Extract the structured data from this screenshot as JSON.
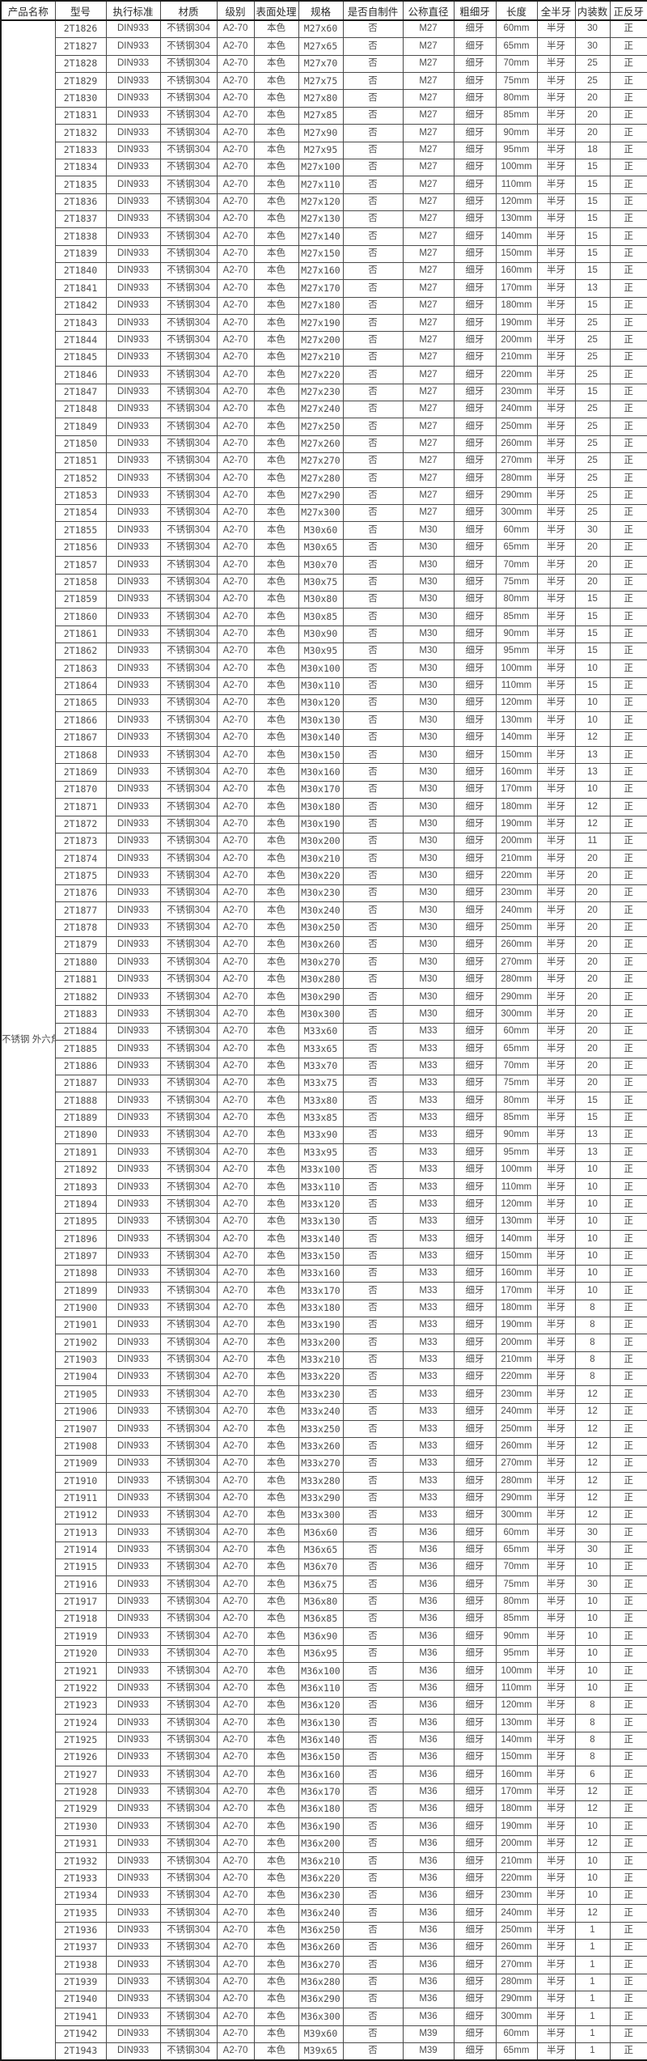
{
  "product": {
    "name": "不锈钢 外六角螺丝"
  },
  "table": {
    "columns": [
      "产品名称",
      "型号",
      "执行标准",
      "材质",
      "级别",
      "表面处理",
      "规格",
      "是否自制件",
      "公称直径",
      "粗细牙",
      "长度",
      "全半牙",
      "内装数",
      "正反牙"
    ],
    "constants": {
      "standard": "DIN933",
      "material": "不锈钢304",
      "grade": "A2-70",
      "surface": "本色",
      "self_made": "否",
      "thread_pitch": "细牙",
      "thread_coverage": "半牙",
      "thread_direction": "正"
    },
    "rows": [
      [
        "2T1826",
        "M27x60",
        "M27",
        "60mm",
        "30"
      ],
      [
        "2T1827",
        "M27x65",
        "M27",
        "65mm",
        "30"
      ],
      [
        "2T1828",
        "M27x70",
        "M27",
        "70mm",
        "25"
      ],
      [
        "2T1829",
        "M27x75",
        "M27",
        "75mm",
        "25"
      ],
      [
        "2T1830",
        "M27x80",
        "M27",
        "80mm",
        "20"
      ],
      [
        "2T1831",
        "M27x85",
        "M27",
        "85mm",
        "20"
      ],
      [
        "2T1832",
        "M27x90",
        "M27",
        "90mm",
        "20"
      ],
      [
        "2T1833",
        "M27x95",
        "M27",
        "95mm",
        "18"
      ],
      [
        "2T1834",
        "M27x100",
        "M27",
        "100mm",
        "15"
      ],
      [
        "2T1835",
        "M27x110",
        "M27",
        "110mm",
        "15"
      ],
      [
        "2T1836",
        "M27x120",
        "M27",
        "120mm",
        "15"
      ],
      [
        "2T1837",
        "M27x130",
        "M27",
        "130mm",
        "15"
      ],
      [
        "2T1838",
        "M27x140",
        "M27",
        "140mm",
        "15"
      ],
      [
        "2T1839",
        "M27x150",
        "M27",
        "150mm",
        "15"
      ],
      [
        "2T1840",
        "M27x160",
        "M27",
        "160mm",
        "15"
      ],
      [
        "2T1841",
        "M27x170",
        "M27",
        "170mm",
        "13"
      ],
      [
        "2T1842",
        "M27x180",
        "M27",
        "180mm",
        "15"
      ],
      [
        "2T1843",
        "M27x190",
        "M27",
        "190mm",
        "25"
      ],
      [
        "2T1844",
        "M27x200",
        "M27",
        "200mm",
        "25"
      ],
      [
        "2T1845",
        "M27x210",
        "M27",
        "210mm",
        "25"
      ],
      [
        "2T1846",
        "M27x220",
        "M27",
        "220mm",
        "25"
      ],
      [
        "2T1847",
        "M27x230",
        "M27",
        "230mm",
        "15"
      ],
      [
        "2T1848",
        "M27x240",
        "M27",
        "240mm",
        "25"
      ],
      [
        "2T1849",
        "M27x250",
        "M27",
        "250mm",
        "25"
      ],
      [
        "2T1850",
        "M27x260",
        "M27",
        "260mm",
        "25"
      ],
      [
        "2T1851",
        "M27x270",
        "M27",
        "270mm",
        "25"
      ],
      [
        "2T1852",
        "M27x280",
        "M27",
        "280mm",
        "25"
      ],
      [
        "2T1853",
        "M27x290",
        "M27",
        "290mm",
        "25"
      ],
      [
        "2T1854",
        "M27x300",
        "M27",
        "300mm",
        "25"
      ],
      [
        "2T1855",
        "M30x60",
        "M30",
        "60mm",
        "30"
      ],
      [
        "2T1856",
        "M30x65",
        "M30",
        "65mm",
        "20"
      ],
      [
        "2T1857",
        "M30x70",
        "M30",
        "70mm",
        "20"
      ],
      [
        "2T1858",
        "M30x75",
        "M30",
        "75mm",
        "20"
      ],
      [
        "2T1859",
        "M30x80",
        "M30",
        "80mm",
        "15"
      ],
      [
        "2T1860",
        "M30x85",
        "M30",
        "85mm",
        "15"
      ],
      [
        "2T1861",
        "M30x90",
        "M30",
        "90mm",
        "15"
      ],
      [
        "2T1862",
        "M30x95",
        "M30",
        "95mm",
        "15"
      ],
      [
        "2T1863",
        "M30x100",
        "M30",
        "100mm",
        "10"
      ],
      [
        "2T1864",
        "M30x110",
        "M30",
        "110mm",
        "15"
      ],
      [
        "2T1865",
        "M30x120",
        "M30",
        "120mm",
        "10"
      ],
      [
        "2T1866",
        "M30x130",
        "M30",
        "130mm",
        "10"
      ],
      [
        "2T1867",
        "M30x140",
        "M30",
        "140mm",
        "12"
      ],
      [
        "2T1868",
        "M30x150",
        "M30",
        "150mm",
        "13"
      ],
      [
        "2T1869",
        "M30x160",
        "M30",
        "160mm",
        "13"
      ],
      [
        "2T1870",
        "M30x170",
        "M30",
        "170mm",
        "10"
      ],
      [
        "2T1871",
        "M30x180",
        "M30",
        "180mm",
        "12"
      ],
      [
        "2T1872",
        "M30x190",
        "M30",
        "190mm",
        "12"
      ],
      [
        "2T1873",
        "M30x200",
        "M30",
        "200mm",
        "11"
      ],
      [
        "2T1874",
        "M30x210",
        "M30",
        "210mm",
        "20"
      ],
      [
        "2T1875",
        "M30x220",
        "M30",
        "220mm",
        "20"
      ],
      [
        "2T1876",
        "M30x230",
        "M30",
        "230mm",
        "20"
      ],
      [
        "2T1877",
        "M30x240",
        "M30",
        "240mm",
        "20"
      ],
      [
        "2T1878",
        "M30x250",
        "M30",
        "250mm",
        "20"
      ],
      [
        "2T1879",
        "M30x260",
        "M30",
        "260mm",
        "20"
      ],
      [
        "2T1880",
        "M30x270",
        "M30",
        "270mm",
        "20"
      ],
      [
        "2T1881",
        "M30x280",
        "M30",
        "280mm",
        "20"
      ],
      [
        "2T1882",
        "M30x290",
        "M30",
        "290mm",
        "20"
      ],
      [
        "2T1883",
        "M30x300",
        "M30",
        "300mm",
        "20"
      ],
      [
        "2T1884",
        "M33x60",
        "M33",
        "60mm",
        "20"
      ],
      [
        "2T1885",
        "M33x65",
        "M33",
        "65mm",
        "20"
      ],
      [
        "2T1886",
        "M33x70",
        "M33",
        "70mm",
        "20"
      ],
      [
        "2T1887",
        "M33x75",
        "M33",
        "75mm",
        "20"
      ],
      [
        "2T1888",
        "M33x80",
        "M33",
        "80mm",
        "15"
      ],
      [
        "2T1889",
        "M33x85",
        "M33",
        "85mm",
        "15"
      ],
      [
        "2T1890",
        "M33x90",
        "M33",
        "90mm",
        "13"
      ],
      [
        "2T1891",
        "M33x95",
        "M33",
        "95mm",
        "13"
      ],
      [
        "2T1892",
        "M33x100",
        "M33",
        "100mm",
        "10"
      ],
      [
        "2T1893",
        "M33x110",
        "M33",
        "110mm",
        "10"
      ],
      [
        "2T1894",
        "M33x120",
        "M33",
        "120mm",
        "10"
      ],
      [
        "2T1895",
        "M33x130",
        "M33",
        "130mm",
        "10"
      ],
      [
        "2T1896",
        "M33x140",
        "M33",
        "140mm",
        "10"
      ],
      [
        "2T1897",
        "M33x150",
        "M33",
        "150mm",
        "10"
      ],
      [
        "2T1898",
        "M33x160",
        "M33",
        "160mm",
        "10"
      ],
      [
        "2T1899",
        "M33x170",
        "M33",
        "170mm",
        "10"
      ],
      [
        "2T1900",
        "M33x180",
        "M33",
        "180mm",
        "8"
      ],
      [
        "2T1901",
        "M33x190",
        "M33",
        "190mm",
        "8"
      ],
      [
        "2T1902",
        "M33x200",
        "M33",
        "200mm",
        "8"
      ],
      [
        "2T1903",
        "M33x210",
        "M33",
        "210mm",
        "8"
      ],
      [
        "2T1904",
        "M33x220",
        "M33",
        "220mm",
        "8"
      ],
      [
        "2T1905",
        "M33x230",
        "M33",
        "230mm",
        "12"
      ],
      [
        "2T1906",
        "M33x240",
        "M33",
        "240mm",
        "12"
      ],
      [
        "2T1907",
        "M33x250",
        "M33",
        "250mm",
        "12"
      ],
      [
        "2T1908",
        "M33x260",
        "M33",
        "260mm",
        "12"
      ],
      [
        "2T1909",
        "M33x270",
        "M33",
        "270mm",
        "12"
      ],
      [
        "2T1910",
        "M33x280",
        "M33",
        "280mm",
        "12"
      ],
      [
        "2T1911",
        "M33x290",
        "M33",
        "290mm",
        "12"
      ],
      [
        "2T1912",
        "M33x300",
        "M33",
        "300mm",
        "12"
      ],
      [
        "2T1913",
        "M36x60",
        "M36",
        "60mm",
        "30"
      ],
      [
        "2T1914",
        "M36x65",
        "M36",
        "65mm",
        "30"
      ],
      [
        "2T1915",
        "M36x70",
        "M36",
        "70mm",
        "10"
      ],
      [
        "2T1916",
        "M36x75",
        "M36",
        "75mm",
        "30"
      ],
      [
        "2T1917",
        "M36x80",
        "M36",
        "80mm",
        "10"
      ],
      [
        "2T1918",
        "M36x85",
        "M36",
        "85mm",
        "10"
      ],
      [
        "2T1919",
        "M36x90",
        "M36",
        "90mm",
        "10"
      ],
      [
        "2T1920",
        "M36x95",
        "M36",
        "95mm",
        "10"
      ],
      [
        "2T1921",
        "M36x100",
        "M36",
        "100mm",
        "10"
      ],
      [
        "2T1922",
        "M36x110",
        "M36",
        "110mm",
        "10"
      ],
      [
        "2T1923",
        "M36x120",
        "M36",
        "120mm",
        "8"
      ],
      [
        "2T1924",
        "M36x130",
        "M36",
        "130mm",
        "8"
      ],
      [
        "2T1925",
        "M36x140",
        "M36",
        "140mm",
        "8"
      ],
      [
        "2T1926",
        "M36x150",
        "M36",
        "150mm",
        "8"
      ],
      [
        "2T1927",
        "M36x160",
        "M36",
        "160mm",
        "6"
      ],
      [
        "2T1928",
        "M36x170",
        "M36",
        "170mm",
        "12"
      ],
      [
        "2T1929",
        "M36x180",
        "M36",
        "180mm",
        "12"
      ],
      [
        "2T1930",
        "M36x190",
        "M36",
        "190mm",
        "10"
      ],
      [
        "2T1931",
        "M36x200",
        "M36",
        "200mm",
        "12"
      ],
      [
        "2T1932",
        "M36x210",
        "M36",
        "210mm",
        "10"
      ],
      [
        "2T1933",
        "M36x220",
        "M36",
        "220mm",
        "10"
      ],
      [
        "2T1934",
        "M36x230",
        "M36",
        "230mm",
        "10"
      ],
      [
        "2T1935",
        "M36x240",
        "M36",
        "240mm",
        "12"
      ],
      [
        "2T1936",
        "M36x250",
        "M36",
        "250mm",
        "1"
      ],
      [
        "2T1937",
        "M36x260",
        "M36",
        "260mm",
        "1"
      ],
      [
        "2T1938",
        "M36x270",
        "M36",
        "270mm",
        "1"
      ],
      [
        "2T1939",
        "M36x280",
        "M36",
        "280mm",
        "1"
      ],
      [
        "2T1940",
        "M36x290",
        "M36",
        "290mm",
        "1"
      ],
      [
        "2T1941",
        "M36x300",
        "M36",
        "300mm",
        "1"
      ],
      [
        "2T1942",
        "M39x60",
        "M39",
        "60mm",
        "1"
      ],
      [
        "2T1943",
        "M39x65",
        "M39",
        "65mm",
        "1"
      ]
    ]
  }
}
